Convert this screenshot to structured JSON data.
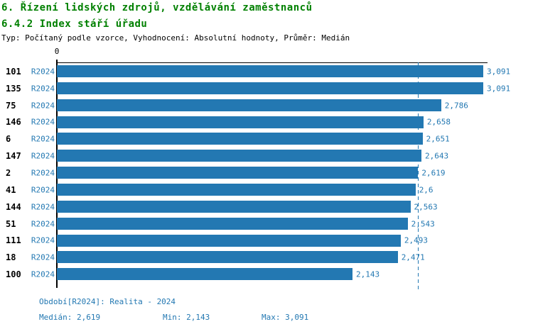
{
  "header": {
    "title": "6. Řízení lidských zdrojů, vzdělávání zaměstnanců",
    "subtitle": "6.4.2 Index stáří úřadu",
    "meta": "Typ: Počítaný podle vzorce, Vyhodnocení: Absolutní hodnoty, Průměr: Medián"
  },
  "colors": {
    "accent_blue": "#2378b2",
    "title_green": "#008000",
    "axis_black": "#000000",
    "background": "#ffffff"
  },
  "chart_data": {
    "type": "bar",
    "orientation": "horizontal",
    "title": "6.4.2 Index stáří úřadu",
    "series_label": "R2024",
    "categories": [
      "101",
      "135",
      "75",
      "146",
      "6",
      "147",
      "2",
      "41",
      "144",
      "51",
      "111",
      "18",
      "100"
    ],
    "values": [
      3.091,
      3.091,
      2.786,
      2.658,
      2.651,
      2.643,
      2.619,
      2.6,
      2.563,
      2.543,
      2.493,
      2.471,
      2.143
    ],
    "value_labels": [
      "3,091",
      "3,091",
      "2,786",
      "2,658",
      "2,651",
      "2,643",
      "2,619",
      "2,6",
      "2,563",
      "2,543",
      "2,493",
      "2,471",
      "2,143"
    ],
    "axis_zero_label": "0",
    "xlim": [
      0,
      3.122
    ],
    "grid": false,
    "median_line": true,
    "median_value": 2.619,
    "bar_color": "#2378b2"
  },
  "footer": {
    "period": "Období[R2024]: Realita - 2024",
    "median": "Medián: 2,619",
    "min": "Min: 2,143",
    "max": "Max: 3,091"
  }
}
